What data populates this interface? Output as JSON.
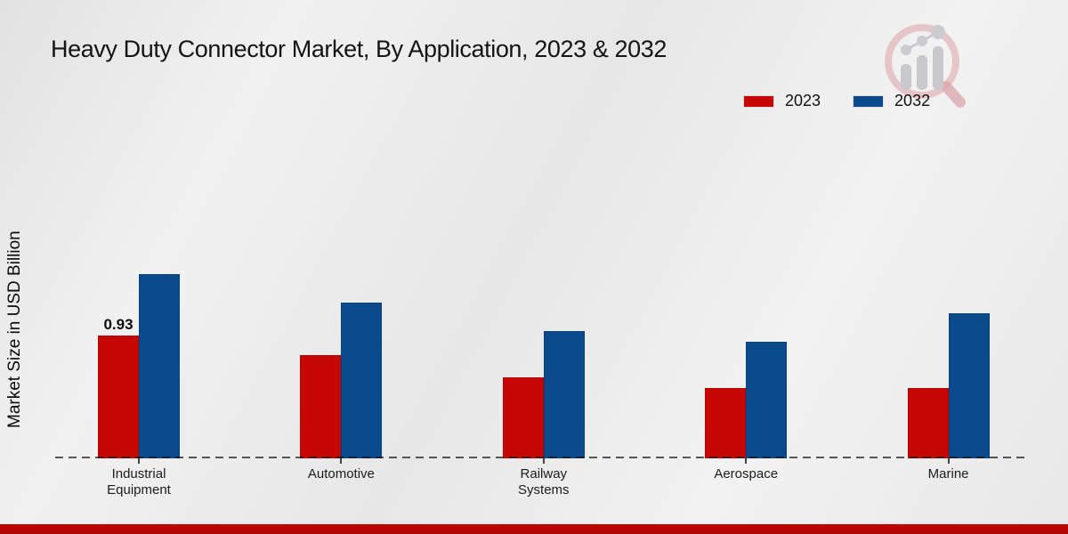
{
  "title": "Heavy Duty Connector Market, By Application, 2023 & 2032",
  "ylabel": "Market Size in USD Billion",
  "legend": {
    "items": [
      {
        "label": "2023",
        "color": "#c70606"
      },
      {
        "label": "2032",
        "color": "#0b4a8b"
      }
    ]
  },
  "chart_data": {
    "type": "bar",
    "title": "Heavy Duty Connector Market, By Application, 2023 & 2032",
    "xlabel": "",
    "ylabel": "Market Size in USD Billion",
    "categories": [
      "Industrial Equipment",
      "Automotive",
      "Railway Systems",
      "Aerospace",
      "Marine"
    ],
    "series": [
      {
        "name": "2023",
        "color": "#c70606",
        "values": [
          0.93,
          0.78,
          0.61,
          0.53,
          0.53
        ]
      },
      {
        "name": "2032",
        "color": "#0b4a8b",
        "values": [
          1.39,
          1.18,
          0.96,
          0.88,
          1.1
        ]
      }
    ],
    "data_labels": [
      {
        "series_index": 0,
        "category_index": 0,
        "label": "0.93"
      }
    ],
    "ylim": [
      0,
      1.75
    ],
    "y_ticks_visible": false,
    "grid": false,
    "baseline_style": "dashed",
    "legend_position": "top-right"
  },
  "branding": {
    "footer_bar_color": "#b50303",
    "watermark_icon": "magnifier-bar-chart-logo"
  }
}
